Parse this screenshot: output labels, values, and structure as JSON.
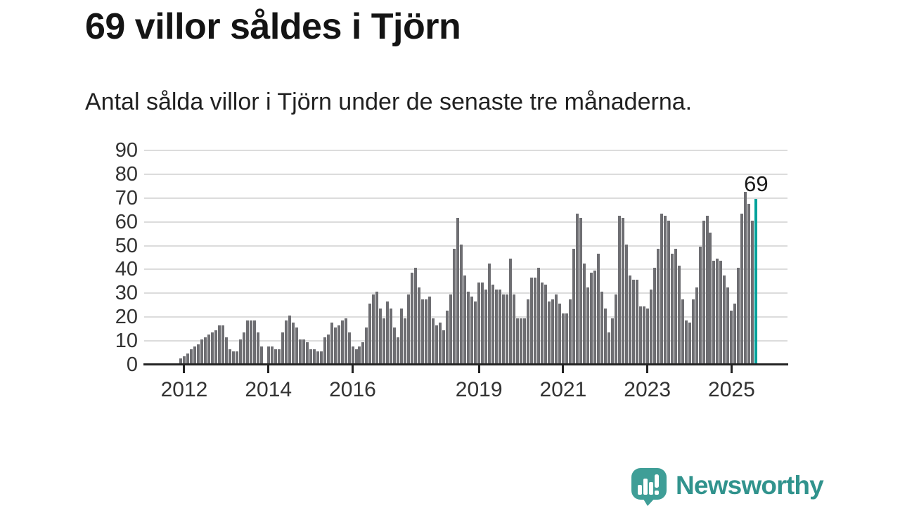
{
  "title": "69 villor såldes i Tjörn",
  "subtitle": "Antal sålda villor i Tjörn under de senaste tre månaderna.",
  "annotation": {
    "label": "69"
  },
  "chart_data": {
    "type": "bar",
    "title": "69 villor såldes i Tjörn",
    "subtitle": "Antal sålda villor i Tjörn under de senaste tre månaderna.",
    "ylabel": "",
    "xlabel": "",
    "ylim": [
      0,
      90
    ],
    "yticks": [
      0,
      10,
      20,
      30,
      40,
      50,
      60,
      70,
      80,
      90
    ],
    "grid": true,
    "values": [
      2,
      3,
      4,
      6,
      7,
      8,
      10,
      11,
      12,
      13,
      14,
      16,
      16,
      11,
      6,
      5,
      5,
      10,
      13,
      18,
      18,
      18,
      13,
      7,
      0,
      7,
      7,
      6,
      6,
      13,
      18,
      20,
      17,
      15,
      10,
      10,
      9,
      6,
      6,
      5,
      5,
      11,
      12,
      17,
      15,
      16,
      18,
      19,
      13,
      7,
      6,
      7,
      9,
      15,
      25,
      29,
      30,
      23,
      19,
      26,
      23,
      15,
      11,
      23,
      19,
      29,
      38,
      40,
      32,
      27,
      27,
      28,
      19,
      16,
      17,
      14,
      22,
      29,
      48,
      61,
      50,
      37,
      30,
      28,
      26,
      34,
      34,
      31,
      42,
      33,
      31,
      31,
      29,
      29,
      44,
      29,
      19,
      19,
      19,
      27,
      36,
      36,
      40,
      34,
      33,
      26,
      27,
      29,
      25,
      21,
      21,
      27,
      48,
      63,
      61,
      42,
      32,
      38,
      39,
      46,
      30,
      23,
      13,
      19,
      29,
      62,
      61,
      50,
      37,
      35,
      35,
      24,
      24,
      23,
      31,
      40,
      48,
      63,
      62,
      60,
      46,
      48,
      41,
      27,
      18,
      17,
      27,
      32,
      49,
      60,
      62,
      55,
      43,
      44,
      43,
      37,
      32,
      22,
      25,
      40,
      63,
      72,
      67,
      60,
      69
    ],
    "highlight_index": 164,
    "highlight_value": 69,
    "xticks": [
      {
        "label": "2012",
        "index": 1
      },
      {
        "label": "2014",
        "index": 25
      },
      {
        "label": "2016",
        "index": 49
      },
      {
        "label": "2019",
        "index": 85
      },
      {
        "label": "2021",
        "index": 109
      },
      {
        "label": "2023",
        "index": 133
      },
      {
        "label": "2025",
        "index": 157
      }
    ],
    "colors": {
      "bar": "#6e6e72",
      "highlight": "#00a29b",
      "grid": "#dcdcdc",
      "axis": "#232323",
      "tick_label": "#333333"
    }
  },
  "branding": {
    "logo_text": "Newsworthy",
    "logo_text_color": "#31938d",
    "logo_icon_color": "#3f9e97",
    "logo_icon": "chart-speech-bubble-icon"
  }
}
